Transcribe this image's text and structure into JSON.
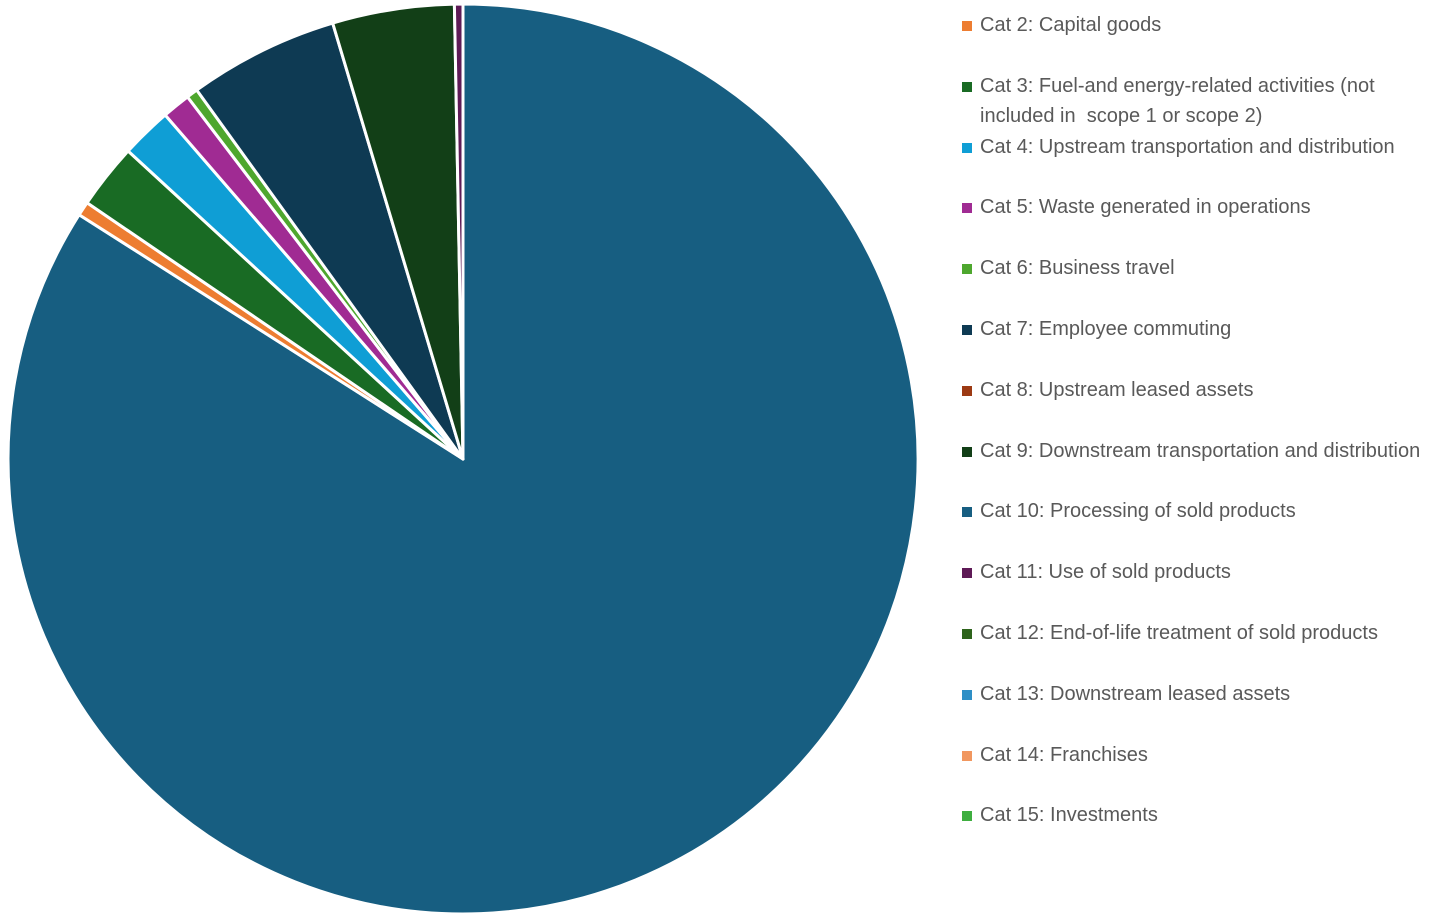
{
  "chart_data": {
    "type": "pie",
    "title": "",
    "start_angle_deg": 0,
    "direction": "clockwise",
    "legend_position": "right",
    "slices": [
      {
        "label": "Cat 2: Capital goods",
        "value": 0.0,
        "color": "#ED7D31"
      },
      {
        "label": "Cat 3: Fuel-and energy-related activities (not included in  scope 1 or scope 2)",
        "value": 0.0,
        "color": "#196B24"
      },
      {
        "label": "Cat 4: Upstream transportation and distribution",
        "value": 0.0,
        "color": "#0F9ED5"
      },
      {
        "label": "Cat 5: Waste generated in operations",
        "value": 0.0,
        "color": "#A02B93"
      },
      {
        "label": "Cat 6: Business travel",
        "value": 0.0,
        "color": "#4EA72E"
      },
      {
        "label": "Cat 7: Employee commuting",
        "value": 0.0,
        "color": "#0E3A53"
      },
      {
        "label": "Cat 8: Upstream leased assets",
        "value": 0.0,
        "color": "#9C3A13"
      },
      {
        "label": "Cat 9: Downstream transportation and distribution",
        "value": 4.3,
        "color": "#123F17"
      },
      {
        "label": "Cat 10: Processing of sold products",
        "value": 83.6,
        "color": "#175E81"
      },
      {
        "label": "Cat 11: Use of sold products",
        "value": 0.3,
        "color": "#5E1A56"
      },
      {
        "label": "Cat 12: End-of-life treatment of sold products",
        "value": 0.0,
        "color": "#2E641C"
      },
      {
        "label": "Cat 13: Downstream leased assets",
        "value": 0.0,
        "color": "#2E8FC6"
      },
      {
        "label": "Cat 14: Franchises",
        "value": 0.0,
        "color": "#F1975F"
      },
      {
        "label": "Cat 15: Investments",
        "value": 0.0,
        "color": "#3EAE3F"
      }
    ],
    "unlabeled_slices": [
      {
        "value": 0.5,
        "color": "#ED7D31"
      },
      {
        "value": 2.3,
        "color": "#196B24"
      },
      {
        "value": 1.8,
        "color": "#0F9ED5"
      },
      {
        "value": 1.0,
        "color": "#A02B93"
      },
      {
        "value": 0.4,
        "color": "#4EA72E"
      },
      {
        "value": 5.3,
        "color": "#0E3A53"
      }
    ]
  }
}
